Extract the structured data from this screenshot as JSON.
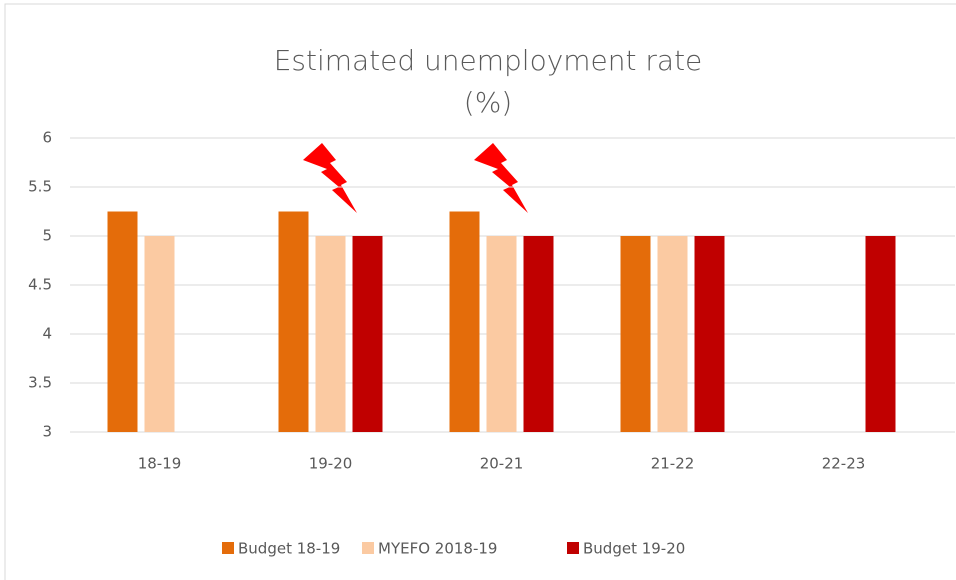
{
  "chart_data": {
    "type": "bar",
    "title": "Estimated unemployment rate",
    "subtitle": "(%)",
    "categories": [
      "18-19",
      "19-20",
      "20-21",
      "21-22",
      "22-23"
    ],
    "series": [
      {
        "name": "Budget 18-19",
        "color": "#e46c0a",
        "values": [
          5.25,
          5.25,
          5.25,
          5,
          null
        ]
      },
      {
        "name": "MYEFO 2018-19",
        "color": "#fbcaa2",
        "values": [
          5,
          5,
          5,
          5,
          null
        ]
      },
      {
        "name": "Budget 19-20",
        "color": "#c00000",
        "values": [
          null,
          5,
          5,
          5,
          5
        ]
      }
    ],
    "ylim": [
      3,
      6
    ],
    "yticks": [
      3,
      3.5,
      4,
      4.5,
      5,
      5.5,
      6
    ],
    "grid": true,
    "legend": "bottom"
  }
}
